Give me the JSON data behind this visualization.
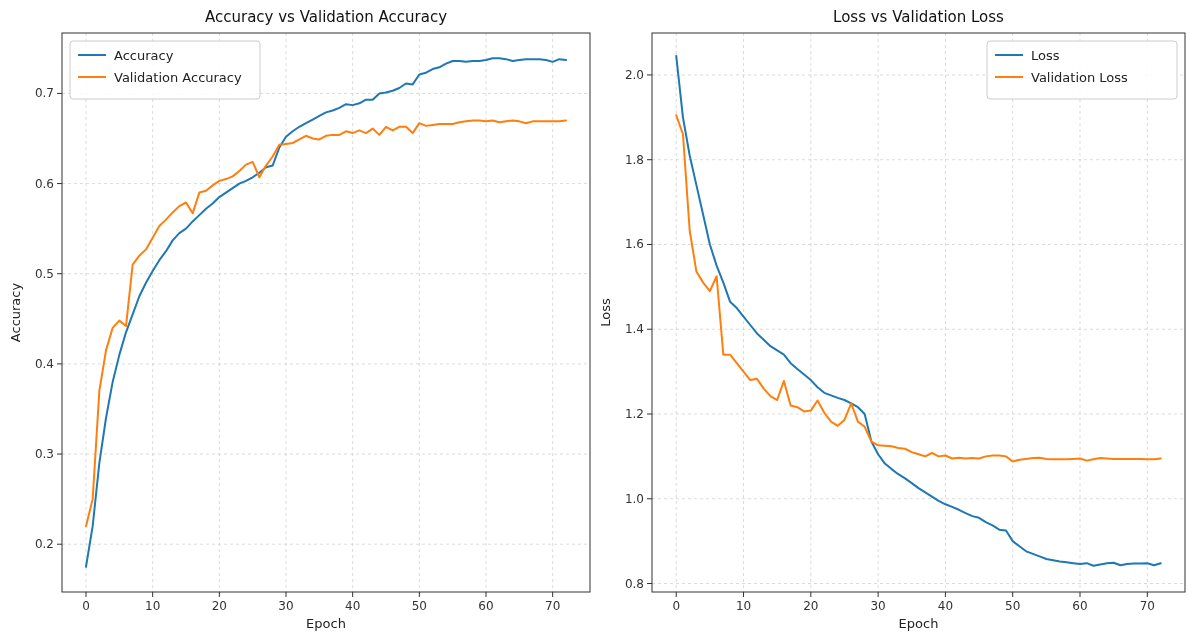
{
  "chart_data": [
    {
      "type": "line",
      "title": "Accuracy vs Validation Accuracy",
      "xlabel": "Epoch",
      "ylabel": "Accuracy",
      "x": [
        0,
        1,
        2,
        3,
        4,
        5,
        6,
        7,
        8,
        9,
        10,
        11,
        12,
        13,
        14,
        15,
        16,
        17,
        18,
        19,
        20,
        21,
        22,
        23,
        24,
        25,
        26,
        27,
        28,
        29,
        30,
        31,
        32,
        33,
        34,
        35,
        36,
        37,
        38,
        39,
        40,
        41,
        42,
        43,
        44,
        45,
        46,
        47,
        48,
        49,
        50,
        51,
        52,
        53,
        54,
        55,
        56,
        57,
        58,
        59,
        60,
        61,
        62,
        63,
        64,
        65,
        66,
        67,
        68,
        69,
        70,
        71,
        72
      ],
      "series": [
        {
          "name": "Accuracy",
          "color": "#1f77b4",
          "values": [
            0.175,
            0.22,
            0.29,
            0.34,
            0.38,
            0.41,
            0.435,
            0.455,
            0.475,
            0.49,
            0.503,
            0.515,
            0.525,
            0.537,
            0.545,
            0.55,
            0.558,
            0.565,
            0.572,
            0.578,
            0.585,
            0.59,
            0.595,
            0.6,
            0.603,
            0.607,
            0.612,
            0.618,
            0.62,
            0.64,
            0.652,
            0.658,
            0.663,
            0.667,
            0.671,
            0.675,
            0.679,
            0.681,
            0.684,
            0.688,
            0.687,
            0.689,
            0.693,
            0.693,
            0.7,
            0.701,
            0.703,
            0.706,
            0.711,
            0.71,
            0.721,
            0.723,
            0.727,
            0.729,
            0.733,
            0.736,
            0.736,
            0.735,
            0.736,
            0.736,
            0.737,
            0.739,
            0.739,
            0.738,
            0.736,
            0.737,
            0.738,
            0.738,
            0.738,
            0.737,
            0.735,
            0.738,
            0.737
          ]
        },
        {
          "name": "Validation Accuracy",
          "color": "#ff7f0e",
          "values": [
            0.22,
            0.25,
            0.37,
            0.415,
            0.44,
            0.448,
            0.442,
            0.51,
            0.52,
            0.527,
            0.54,
            0.553,
            0.56,
            0.568,
            0.575,
            0.579,
            0.567,
            0.59,
            0.592,
            0.598,
            0.603,
            0.605,
            0.608,
            0.614,
            0.621,
            0.624,
            0.607,
            0.62,
            0.63,
            0.643,
            0.644,
            0.645,
            0.649,
            0.653,
            0.65,
            0.649,
            0.653,
            0.654,
            0.654,
            0.658,
            0.656,
            0.659,
            0.656,
            0.661,
            0.654,
            0.663,
            0.659,
            0.663,
            0.663,
            0.656,
            0.667,
            0.664,
            0.665,
            0.666,
            0.666,
            0.666,
            0.668,
            0.669,
            0.67,
            0.67,
            0.669,
            0.67,
            0.668,
            0.669,
            0.67,
            0.669,
            0.667,
            0.669,
            0.669,
            0.669,
            0.669,
            0.669,
            0.67
          ]
        }
      ],
      "xlim": [
        -3.6,
        75.6
      ],
      "xticks": [
        0,
        10,
        20,
        30,
        40,
        50,
        60,
        70
      ],
      "ylim": [
        0.147,
        0.767
      ],
      "yticks": [
        0.2,
        0.3,
        0.4,
        0.5,
        0.6,
        0.7
      ],
      "grid": true,
      "legend": "top left",
      "line_style": "solid",
      "marker": "none"
    },
    {
      "type": "line",
      "title": "Loss vs Validation Loss",
      "xlabel": "Epoch",
      "ylabel": "Loss",
      "x": [
        0,
        1,
        2,
        3,
        4,
        5,
        6,
        7,
        8,
        9,
        10,
        11,
        12,
        13,
        14,
        15,
        16,
        17,
        18,
        19,
        20,
        21,
        22,
        23,
        24,
        25,
        26,
        27,
        28,
        29,
        30,
        31,
        32,
        33,
        34,
        35,
        36,
        37,
        38,
        39,
        40,
        41,
        42,
        43,
        44,
        45,
        46,
        47,
        48,
        49,
        50,
        51,
        52,
        53,
        54,
        55,
        56,
        57,
        58,
        59,
        60,
        61,
        62,
        63,
        64,
        65,
        66,
        67,
        68,
        69,
        70,
        71,
        72
      ],
      "series": [
        {
          "name": "Loss",
          "color": "#1f77b4",
          "values": [
            2.045,
            1.9,
            1.81,
            1.74,
            1.67,
            1.6,
            1.55,
            1.51,
            1.465,
            1.45,
            1.43,
            1.41,
            1.39,
            1.375,
            1.36,
            1.35,
            1.34,
            1.32,
            1.306,
            1.293,
            1.28,
            1.263,
            1.25,
            1.244,
            1.238,
            1.233,
            1.225,
            1.216,
            1.2,
            1.135,
            1.105,
            1.083,
            1.07,
            1.058,
            1.048,
            1.037,
            1.025,
            1.015,
            1.005,
            0.995,
            0.987,
            0.981,
            0.974,
            0.966,
            0.959,
            0.955,
            0.945,
            0.937,
            0.927,
            0.925,
            0.9,
            0.888,
            0.876,
            0.87,
            0.864,
            0.858,
            0.855,
            0.852,
            0.85,
            0.848,
            0.846,
            0.848,
            0.842,
            0.845,
            0.848,
            0.849,
            0.843,
            0.846,
            0.847,
            0.847,
            0.848,
            0.843,
            0.848
          ]
        },
        {
          "name": "Validation Loss",
          "color": "#ff7f0e",
          "values": [
            1.905,
            1.86,
            1.633,
            1.536,
            1.51,
            1.49,
            1.525,
            1.34,
            1.34,
            1.32,
            1.3,
            1.28,
            1.283,
            1.26,
            1.242,
            1.233,
            1.278,
            1.22,
            1.216,
            1.206,
            1.208,
            1.232,
            1.203,
            1.182,
            1.172,
            1.186,
            1.225,
            1.182,
            1.17,
            1.135,
            1.126,
            1.125,
            1.124,
            1.12,
            1.118,
            1.11,
            1.105,
            1.1,
            1.108,
            1.1,
            1.102,
            1.095,
            1.097,
            1.095,
            1.096,
            1.095,
            1.1,
            1.102,
            1.102,
            1.1,
            1.088,
            1.092,
            1.094,
            1.096,
            1.097,
            1.094,
            1.093,
            1.093,
            1.093,
            1.094,
            1.095,
            1.09,
            1.093,
            1.096,
            1.095,
            1.094,
            1.094,
            1.094,
            1.094,
            1.094,
            1.093,
            1.093,
            1.095
          ]
        }
      ],
      "xlim": [
        -3.6,
        75.6
      ],
      "xticks": [
        0,
        10,
        20,
        30,
        40,
        50,
        60,
        70
      ],
      "ylim": [
        0.78,
        2.099
      ],
      "yticks": [
        {
          "value": 0.8,
          "label": "0.8"
        },
        {
          "value": 1.0,
          "label": "1.0"
        },
        {
          "value": 1.2,
          "label": "1.2"
        },
        {
          "value": 1.4,
          "label": "1.4"
        },
        {
          "value": 1.6,
          "label": "1.6"
        },
        {
          "value": 1.8,
          "label": "1.8"
        },
        {
          "value": 2.0,
          "label": "2.0"
        }
      ],
      "grid": true,
      "legend": "top right",
      "line_style": "solid",
      "marker": "none"
    }
  ]
}
